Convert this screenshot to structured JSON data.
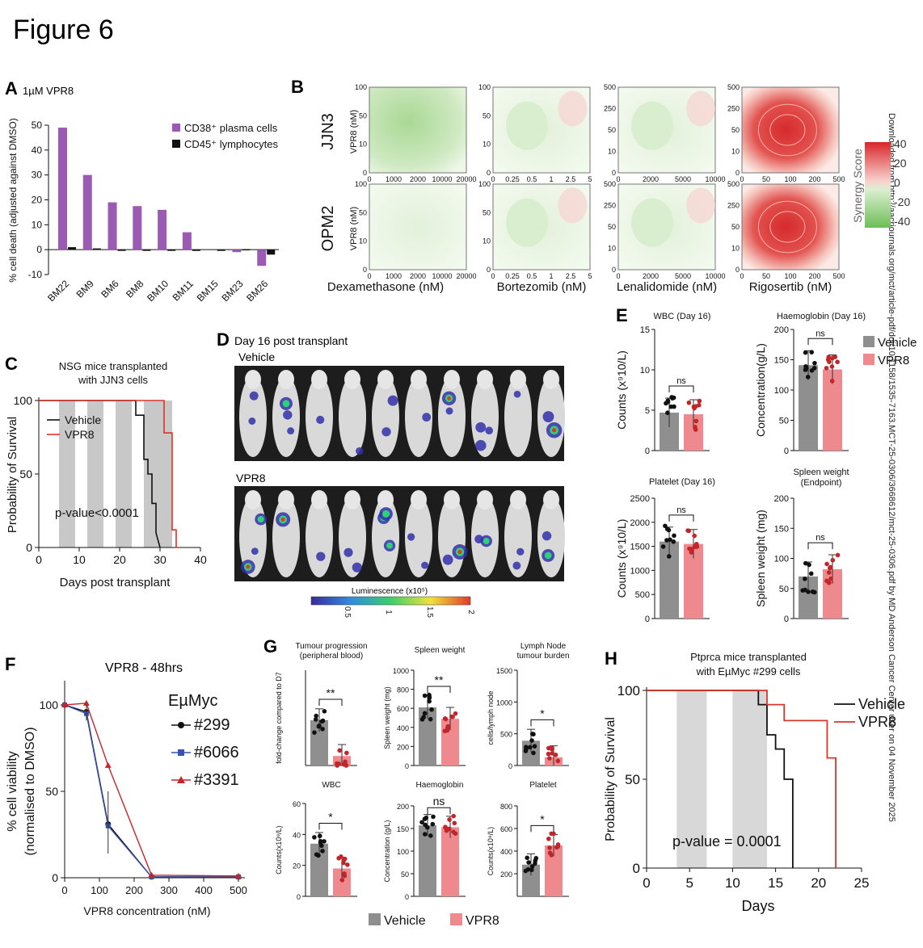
{
  "figure_title": "Figure 6",
  "side_text": "Downloaded from http://aacrjournals.org/mct/article-pdf/doi/10.1158/1535-7163.MCT-25-0306/3668612/mct-25-0306.pdf by MD Anderson Cancer Center user on 04 November 2025",
  "colors": {
    "vehicle": "#8f8f8f",
    "vpr8": "#ee8a8e",
    "purple": "#9b5bb5",
    "red_line": "#d9352a",
    "points_red": "#c0262a"
  },
  "panels": {
    "A": "A",
    "B": "B",
    "C": "C",
    "D": "D",
    "E": "E",
    "F": "F",
    "G": "G",
    "H": "H"
  },
  "chart_data": [
    {
      "id": "A",
      "type": "bar",
      "title": "1µM VPR8",
      "ylabel": "% cell death (adjusted against DMSO)",
      "ylim": [
        -10,
        50
      ],
      "yticks": [
        "-10",
        "0",
        "10",
        "20",
        "30",
        "40",
        "50"
      ],
      "categories": [
        "BM22",
        "BM9",
        "BM6",
        "BM8",
        "BM10",
        "BM11",
        "BM15",
        "BM23",
        "BM26"
      ],
      "series": [
        {
          "name": "CD38⁺ plasma cells",
          "values": [
            49,
            30,
            19,
            17.5,
            16,
            7,
            0,
            -1,
            -6.5
          ]
        },
        {
          "name": "CD45⁺ lymphocytes",
          "values": [
            1,
            0.5,
            -0.3,
            0,
            0,
            -0.5,
            0,
            0.2,
            -2
          ]
        }
      ]
    },
    {
      "id": "B",
      "type": "heatmap",
      "title": "Synergy heatmaps",
      "rows": [
        "JJN3",
        "OPM2"
      ],
      "row_ylabel": "VPR8 (nM)",
      "columns": [
        {
          "xlabel": "Dexamethasone (nM)",
          "xticks": [
            "0",
            "1000",
            "2000",
            "10000",
            "20000"
          ],
          "yticks": [
            "0",
            "10",
            "50",
            "100"
          ],
          "synergy": "antagonistic"
        },
        {
          "xlabel": "Bortezomib (nM)",
          "xticks": [
            "0",
            "0.25",
            "0.5",
            "1",
            "2.5",
            "5"
          ],
          "yticks": [
            "0",
            "10",
            "50",
            "100"
          ],
          "synergy": "mixed"
        },
        {
          "xlabel": "Lenalidomide (nM)",
          "xticks": [
            "0",
            "2000",
            "5000",
            "10000"
          ],
          "yticks": [
            "0",
            "10",
            "50",
            "250",
            "500"
          ],
          "synergy": "mixed"
        },
        {
          "xlabel": "Rigosertib (nM)",
          "xticks": [
            "0",
            "50",
            "100",
            "200",
            "500"
          ],
          "yticks": [
            "0",
            "10",
            "50",
            "250",
            "500"
          ],
          "synergy": "synergistic"
        }
      ],
      "colorbar": {
        "label": "Synergy Score",
        "ticks": [
          "40",
          "20",
          "0",
          "-20",
          "-40"
        ]
      }
    },
    {
      "id": "C",
      "type": "line",
      "title": "NSG mice transplanted with JJN3 cells",
      "xlabel": "Days post transplant",
      "ylabel": "Probability of Survival",
      "xlim": [
        0,
        40
      ],
      "ylim": [
        0,
        100
      ],
      "xticks": [
        "0",
        "10",
        "20",
        "30",
        "40"
      ],
      "yticks": [
        "0",
        "50",
        "100"
      ],
      "series": [
        {
          "name": "Vehicle",
          "x": [
            0,
            24,
            24,
            26,
            26,
            27,
            27,
            28,
            28,
            29,
            29,
            30
          ],
          "y": [
            100,
            100,
            90,
            90,
            60,
            60,
            50,
            50,
            30,
            30,
            10,
            0
          ]
        },
        {
          "name": "VPR8",
          "x": [
            0,
            31,
            31,
            33,
            33,
            34,
            34,
            35
          ],
          "y": [
            100,
            100,
            78,
            78,
            12,
            12,
            0,
            0
          ]
        }
      ],
      "shaded_days": [
        [
          5,
          9
        ],
        [
          12,
          16
        ],
        [
          19,
          23
        ],
        [
          26,
          30
        ]
      ],
      "annotation": "p-value<0.0001"
    },
    {
      "id": "D",
      "type": "table",
      "title": "Day 16 post transplant",
      "groups": [
        "Vehicle",
        "VPR8"
      ],
      "mice_per_group": 10,
      "colorbar": {
        "label": "Luminescence (x10⁵)",
        "ticks": [
          "0.5",
          "1",
          "1.5",
          "2"
        ]
      }
    },
    {
      "id": "E",
      "type": "bar",
      "subplots": [
        {
          "title": "WBC (Day 16)",
          "ylabel": "Counts (x⁹10/L)",
          "ylim": [
            0,
            15
          ],
          "yticks": [
            "0",
            "5",
            "10",
            "15"
          ],
          "values": [
            4.7,
            4.5
          ],
          "sig": "ns"
        },
        {
          "title": "Haemoglobin  (Day 16)",
          "ylabel": "Concentration(g/L)",
          "ylim": [
            0,
            200
          ],
          "yticks": [
            "0",
            "50",
            "100",
            "150",
            "200"
          ],
          "values": [
            141,
            134
          ],
          "sig": "ns"
        },
        {
          "title": "Platelet (Day 16)",
          "ylabel": "Counts (x⁹10/L)",
          "ylim": [
            0,
            2500
          ],
          "yticks": [
            "0",
            "500",
            "1000",
            "1500",
            "2000",
            "2500"
          ],
          "values": [
            1600,
            1550
          ],
          "sig": "ns"
        },
        {
          "title": "Spleen weight (Endpoint)",
          "ylabel": "Spleen weight (mg)",
          "ylim": [
            0,
            200
          ],
          "yticks": [
            "0",
            "50",
            "100",
            "150",
            "200"
          ],
          "values": [
            70,
            82
          ],
          "sig": "ns"
        }
      ],
      "legend": [
        "Vehicle",
        "VPR8"
      ]
    },
    {
      "id": "F",
      "type": "line",
      "title": "VPR8 - 48hrs",
      "xlabel": "VPR8 concentration (nM)",
      "ylabel": "% cell viability (normalised to DMSO)",
      "xlim": [
        0,
        500
      ],
      "ylim": [
        0,
        100
      ],
      "xticks": [
        "0",
        "100",
        "200",
        "300",
        "400",
        "500"
      ],
      "yticks": [
        "0",
        "50",
        "100"
      ],
      "legend_title": "EµMyc",
      "series": [
        {
          "name": "#299",
          "x": [
            0,
            62.5,
            125,
            250,
            500
          ],
          "y": [
            100,
            96,
            31,
            0.5,
            0.5
          ]
        },
        {
          "name": "#6066",
          "x": [
            0,
            62.5,
            125,
            250,
            500
          ],
          "y": [
            100,
            95,
            30,
            0.5,
            0.5
          ]
        },
        {
          "name": "#3391",
          "x": [
            0,
            62.5,
            125,
            250,
            500
          ],
          "y": [
            100,
            101,
            65,
            1.5,
            1
          ]
        }
      ]
    },
    {
      "id": "G",
      "type": "bar",
      "subplots": [
        {
          "title": "Tumour progression\n(peripheral blood)",
          "ylabel": "fold-change compared to D7",
          "ylim": [
            0,
            40
          ],
          "yticks": [],
          "values": [
            19,
            4
          ],
          "sig": "**"
        },
        {
          "title": "Spleen weight",
          "ylabel": "Spleen weight (mg)",
          "ylim": [
            0,
            1000
          ],
          "yticks": [
            "0",
            "200",
            "400",
            "600",
            "800",
            "1000"
          ],
          "values": [
            610,
            490
          ],
          "sig": "**"
        },
        {
          "title": "Lymph Node\ntumour burden",
          "ylabel": "cells/lymph node",
          "ylim": [
            0,
            1500
          ],
          "yticks": [
            "0",
            "500",
            "1000",
            "1500"
          ],
          "values": [
            390,
            130
          ],
          "sig": "*"
        },
        {
          "title": "WBC",
          "ylabel": "Counts(x10⁹/L)",
          "ylim": [
            0,
            60
          ],
          "yticks": [
            "0",
            "20",
            "40",
            "60"
          ],
          "values": [
            34,
            18
          ],
          "sig": "*"
        },
        {
          "title": "Haemoglobin",
          "ylabel": "Concentration (g/L)",
          "ylim": [
            0,
            200
          ],
          "yticks": [
            "0",
            "50",
            "100",
            "150",
            "200"
          ],
          "values": [
            157,
            153
          ],
          "sig": "ns"
        },
        {
          "title": "Platelet",
          "ylabel": "Counts(x10⁹/L)",
          "ylim": [
            0,
            800
          ],
          "yticks": [
            "200",
            "400",
            "600",
            "800"
          ],
          "values": [
            280,
            450
          ],
          "sig": "*"
        }
      ],
      "legend": [
        "Vehicle",
        "VPR8"
      ]
    },
    {
      "id": "H",
      "type": "line",
      "title": "Ptprca mice transplanted with EµMyc #299 cells",
      "xlabel": "Days",
      "ylabel": "Probability of Survival",
      "xlim": [
        0,
        25
      ],
      "ylim": [
        0,
        100
      ],
      "xticks": [
        "0",
        "5",
        "10",
        "15",
        "20",
        "25"
      ],
      "yticks": [
        "0",
        "50",
        "100"
      ],
      "series": [
        {
          "name": "Vehicle",
          "x": [
            0,
            13,
            13,
            14,
            14,
            15,
            15,
            16,
            16,
            17,
            17
          ],
          "y": [
            100,
            100,
            92,
            92,
            75,
            75,
            67,
            67,
            50,
            50,
            0
          ]
        },
        {
          "name": "VPR8",
          "x": [
            0,
            14,
            14,
            16,
            16,
            21,
            21,
            22,
            22
          ],
          "y": [
            100,
            100,
            92,
            92,
            83,
            83,
            62,
            62,
            0
          ]
        }
      ],
      "shaded_days": [
        [
          3.5,
          7
        ],
        [
          10,
          14
        ]
      ],
      "annotation": "p-value = 0.0001"
    }
  ]
}
